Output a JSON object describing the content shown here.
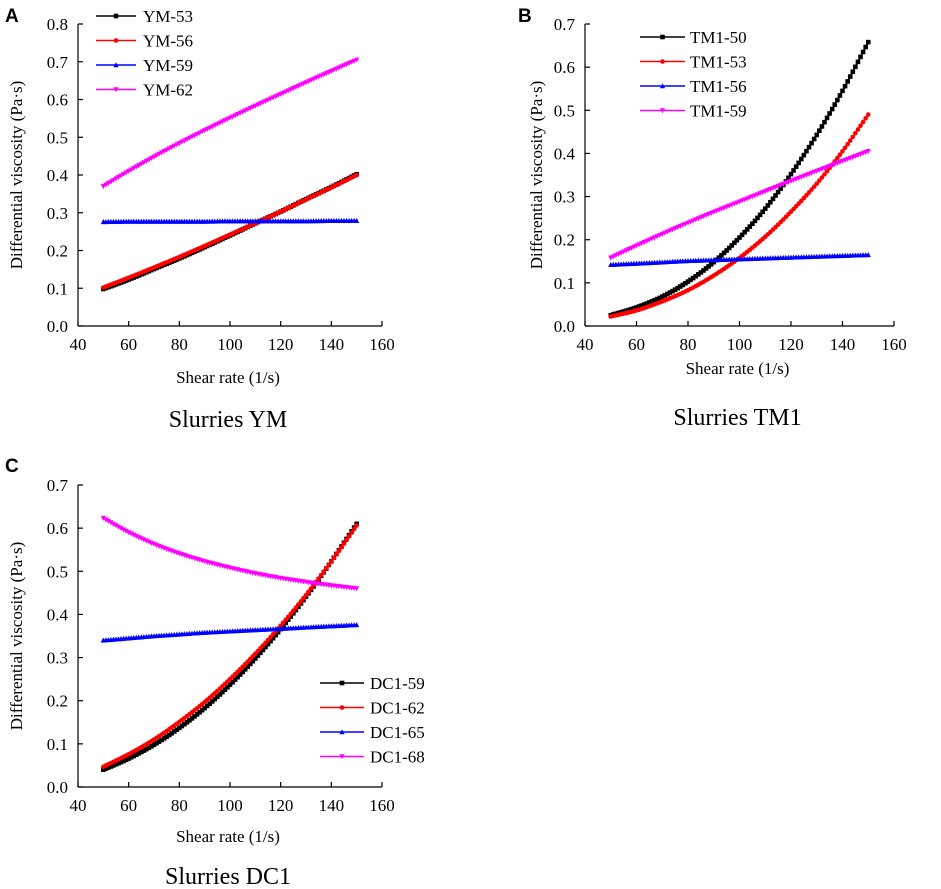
{
  "chart_data": [
    {
      "type": "line",
      "panel": "A",
      "title": "Slurries YM",
      "xlabel": "Shear rate (1/s)",
      "ylabel": "Differential viscosity (Pa·s)",
      "xlim": [
        40,
        160
      ],
      "ylim": [
        0.0,
        0.8
      ],
      "xticks": [
        40,
        60,
        80,
        100,
        120,
        140,
        160
      ],
      "xtick_labels": [
        "40",
        "60",
        "80",
        "100",
        "120",
        "140",
        "160"
      ],
      "yticks": [
        0.0,
        0.1,
        0.2,
        0.3,
        0.4,
        0.5,
        0.6,
        0.7,
        0.8
      ],
      "ytick_labels": [
        "0.0",
        "0.1",
        "0.2",
        "0.3",
        "0.4",
        "0.5",
        "0.6",
        "0.7",
        "0.8"
      ],
      "legend_position": "top-left",
      "x": [
        50,
        60,
        70,
        80,
        90,
        100,
        110,
        120,
        130,
        140,
        150
      ],
      "series": [
        {
          "name": "YM-53",
          "color": "#000000",
          "marker": "square",
          "values": [
            0.098,
            0.123,
            0.151,
            0.179,
            0.209,
            0.24,
            0.272,
            0.303,
            0.336,
            0.368,
            0.402
          ]
        },
        {
          "name": "YM-56",
          "color": "#ff0000",
          "marker": "circle",
          "values": [
            0.102,
            0.128,
            0.155,
            0.183,
            0.212,
            0.242,
            0.272,
            0.303,
            0.335,
            0.367,
            0.4
          ]
        },
        {
          "name": "YM-59",
          "color": "#0000ff",
          "marker": "triangle-up",
          "values": [
            0.276,
            0.277,
            0.277,
            0.277,
            0.277,
            0.278,
            0.278,
            0.278,
            0.278,
            0.279,
            0.279
          ]
        },
        {
          "name": "YM-62",
          "color": "#ff00ff",
          "marker": "triangle-down",
          "values": [
            0.37,
            0.41,
            0.448,
            0.484,
            0.518,
            0.551,
            0.583,
            0.614,
            0.645,
            0.675,
            0.705
          ]
        }
      ]
    },
    {
      "type": "line",
      "panel": "B",
      "title": "Slurries TM1",
      "xlabel": "Shear rate (1/s)",
      "ylabel": "Differential viscosity (Pa·s)",
      "xlim": [
        40,
        160
      ],
      "ylim": [
        0.0,
        0.7
      ],
      "xticks": [
        40,
        60,
        80,
        100,
        120,
        140,
        160
      ],
      "xtick_labels": [
        "40",
        "60",
        "80",
        "100",
        "120",
        "140",
        "160"
      ],
      "yticks": [
        0.0,
        0.1,
        0.2,
        0.3,
        0.4,
        0.5,
        0.6,
        0.7
      ],
      "ytick_labels": [
        "0.0",
        "0.1",
        "0.2",
        "0.3",
        "0.4",
        "0.5",
        "0.6",
        "0.7"
      ],
      "legend_position": "top-left",
      "x": [
        50,
        60,
        70,
        80,
        90,
        100,
        110,
        120,
        130,
        140,
        150
      ],
      "series": [
        {
          "name": "TM1-50",
          "color": "#000000",
          "marker": "square",
          "values": [
            0.025,
            0.043,
            0.068,
            0.103,
            0.148,
            0.205,
            0.272,
            0.352,
            0.443,
            0.545,
            0.658
          ]
        },
        {
          "name": "TM1-53",
          "color": "#ff0000",
          "marker": "circle",
          "values": [
            0.022,
            0.036,
            0.057,
            0.083,
            0.117,
            0.158,
            0.207,
            0.265,
            0.33,
            0.405,
            0.49
          ]
        },
        {
          "name": "TM1-56",
          "color": "#0000ff",
          "marker": "triangle-up",
          "values": [
            0.142,
            0.145,
            0.148,
            0.151,
            0.153,
            0.155,
            0.157,
            0.159,
            0.161,
            0.163,
            0.165
          ]
        },
        {
          "name": "TM1-59",
          "color": "#ff00ff",
          "marker": "triangle-down",
          "values": [
            0.158,
            0.186,
            0.213,
            0.239,
            0.264,
            0.288,
            0.312,
            0.336,
            0.359,
            0.382,
            0.405
          ]
        }
      ]
    },
    {
      "type": "line",
      "panel": "C",
      "title": "Slurries DC1",
      "xlabel": "Shear rate (1/s)",
      "ylabel": "Differential viscosity (Pa·s)",
      "xlim": [
        40,
        160
      ],
      "ylim": [
        0.0,
        0.7
      ],
      "xticks": [
        40,
        60,
        80,
        100,
        120,
        140,
        160
      ],
      "xtick_labels": [
        "40",
        "60",
        "80",
        "100",
        "120",
        "140",
        "160"
      ],
      "yticks": [
        0.0,
        0.1,
        0.2,
        0.3,
        0.4,
        0.5,
        0.6,
        0.7
      ],
      "ytick_labels": [
        "0.0",
        "0.1",
        "0.2",
        "0.3",
        "0.4",
        "0.5",
        "0.6",
        "0.7"
      ],
      "legend_position": "bottom-right",
      "x": [
        50,
        60,
        70,
        80,
        90,
        100,
        110,
        120,
        130,
        140,
        150
      ],
      "series": [
        {
          "name": "DC1-59",
          "color": "#000000",
          "marker": "square",
          "values": [
            0.04,
            0.066,
            0.098,
            0.137,
            0.183,
            0.237,
            0.298,
            0.366,
            0.441,
            0.523,
            0.61
          ]
        },
        {
          "name": "DC1-62",
          "color": "#ff0000",
          "marker": "circle",
          "values": [
            0.047,
            0.076,
            0.11,
            0.151,
            0.197,
            0.25,
            0.309,
            0.374,
            0.445,
            0.523,
            0.606
          ]
        },
        {
          "name": "DC1-65",
          "color": "#0000ff",
          "marker": "triangle-up",
          "values": [
            0.34,
            0.345,
            0.35,
            0.354,
            0.358,
            0.361,
            0.364,
            0.367,
            0.37,
            0.373,
            0.376
          ]
        },
        {
          "name": "DC1-68",
          "color": "#ff00ff",
          "marker": "triangle-down",
          "values": [
            0.623,
            0.59,
            0.563,
            0.541,
            0.523,
            0.508,
            0.495,
            0.484,
            0.475,
            0.467,
            0.46
          ]
        }
      ]
    }
  ]
}
